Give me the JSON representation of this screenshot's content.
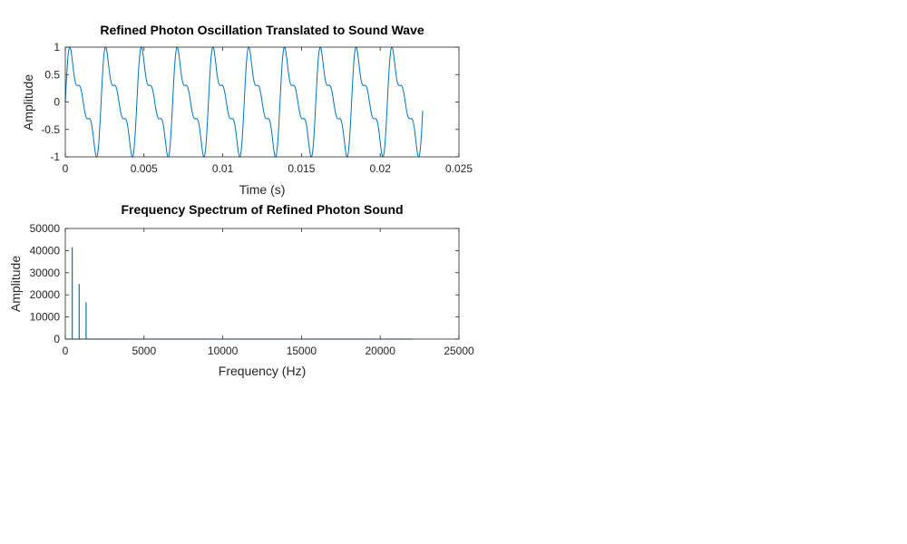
{
  "chart_data": [
    {
      "type": "line",
      "title": "Refined Photon Oscillation Translated to Sound Wave",
      "xlabel": "Time (s)",
      "ylabel": "Amplitude",
      "xlim": [
        0,
        0.025
      ],
      "ylim": [
        -1,
        1
      ],
      "xticks": [
        0,
        0.005,
        0.01,
        0.015,
        0.02,
        0.025
      ],
      "xtick_labels": [
        "0",
        "0.005",
        "0.01",
        "0.015",
        "0.02",
        "0.025"
      ],
      "yticks": [
        -1,
        -0.5,
        0,
        0.5,
        1
      ],
      "ytick_labels": [
        "-1",
        "-0.5",
        "0",
        "0.5",
        "1"
      ],
      "grid": false,
      "color": "#0072BD",
      "series": [
        {
          "fundamental_hz": 440,
          "harmonics": [
            {
              "multiple": 1,
              "amplitude": 1.0
            },
            {
              "multiple": 2,
              "amplitude": 0.5
            },
            {
              "multiple": 3,
              "amplitude": 0.33
            }
          ],
          "normalized_peak": 1,
          "x_start": 0,
          "x_end": 0.0227
        }
      ]
    },
    {
      "type": "bar",
      "title": "Frequency Spectrum of Refined Photon Sound",
      "xlabel": "Frequency (Hz)",
      "ylabel": "Amplitude",
      "xlim": [
        0,
        25000
      ],
      "ylim": [
        0,
        50000
      ],
      "xticks": [
        0,
        5000,
        10000,
        15000,
        20000,
        25000
      ],
      "xtick_labels": [
        "0",
        "5000",
        "10000",
        "15000",
        "20000",
        "25000"
      ],
      "yticks": [
        0,
        10000,
        20000,
        30000,
        40000,
        50000
      ],
      "ytick_labels": [
        "0",
        "10000",
        "20000",
        "30000",
        "40000",
        "50000"
      ],
      "grid": false,
      "color": "#0072BD",
      "x": [
        440,
        880,
        1320
      ],
      "values": [
        41500,
        24900,
        16600
      ],
      "baseline_x_end": 22050
    }
  ]
}
